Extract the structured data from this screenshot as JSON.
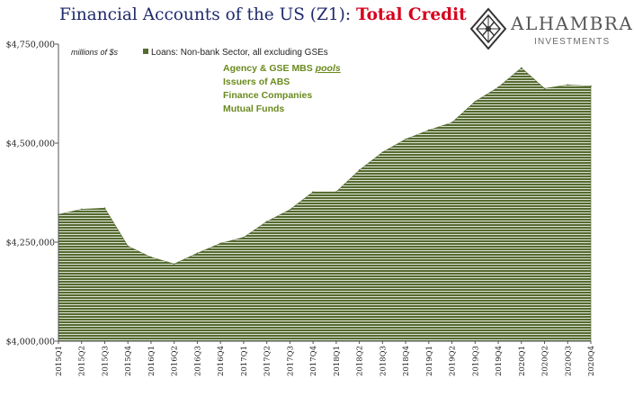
{
  "header": {
    "title_main": "Financial Accounts of the US (Z1): ",
    "title_highlight": "Total Credit"
  },
  "logo": {
    "name": "ALHAMBRA",
    "subtitle": "INVESTMENTS",
    "icon": "diamond-lattice-icon"
  },
  "chart_data": {
    "type": "area",
    "units_label": "millions of $s",
    "legend": [
      {
        "name": "Loans: Non-bank Sector, all excluding GSEs",
        "color": "#556b2f",
        "position": "top-left"
      }
    ],
    "notes": [
      "Agency & GSE MBS ",
      "pools",
      "Issuers of ABS",
      "Finance Companies",
      "Mutual Funds"
    ],
    "categories": [
      "2015Q1",
      "2015Q2",
      "2015Q3",
      "2015Q4",
      "2016Q1",
      "2016Q2",
      "2016Q3",
      "2016Q4",
      "2017Q1",
      "2017Q2",
      "2017Q3",
      "2017Q4",
      "2018Q1",
      "2018Q2",
      "2018Q3",
      "2018Q4",
      "2019Q1",
      "2019Q2",
      "2019Q3",
      "2019Q4",
      "2020Q1",
      "2020Q2",
      "2020Q3",
      "2020Q4"
    ],
    "values": [
      4320000,
      4333000,
      4336000,
      4240000,
      4212000,
      4195000,
      4222000,
      4247000,
      4262000,
      4302000,
      4332000,
      4377000,
      4377000,
      4432000,
      4477000,
      4510000,
      4533000,
      4552000,
      4605000,
      4641000,
      4690000,
      4638000,
      4647000,
      4644000
    ],
    "ylim": [
      4000000,
      4750000
    ],
    "yticks": [
      4000000,
      4250000,
      4500000,
      4750000
    ],
    "ytick_labels": [
      "$4,000,000",
      "$4,250,000",
      "$4,500,000",
      "$4,750,000"
    ],
    "colors": {
      "fill": "#556b2f",
      "stripe": "#ffffff",
      "axis": "#555555"
    }
  }
}
